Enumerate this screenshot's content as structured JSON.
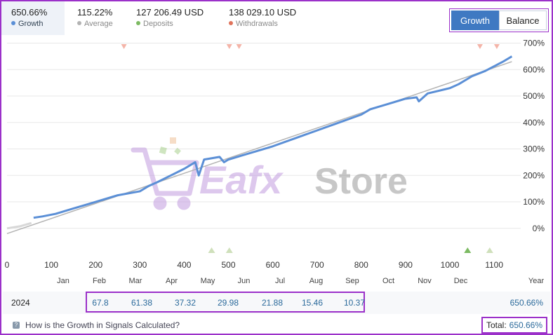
{
  "header": {
    "stats": [
      {
        "value": "650.66%",
        "label": "Growth",
        "dot_color": "#5b8fd6"
      },
      {
        "value": "115.22%",
        "label": "Average",
        "dot_color": "#b3b3b3"
      },
      {
        "value": "127 206.49 USD",
        "label": "Deposits",
        "dot_color": "#7cba62"
      },
      {
        "value": "138 029.10 USD",
        "label": "Withdrawals",
        "dot_color": "#e0735b"
      }
    ],
    "toggle": {
      "growth": "Growth",
      "balance": "Balance"
    }
  },
  "watermark": {
    "text_1": "Eafx",
    "text_2": "Store"
  },
  "chart_data": {
    "type": "line",
    "x_ticks": [
      "0",
      "100",
      "200",
      "300",
      "400",
      "500",
      "600",
      "700",
      "800",
      "900",
      "1000",
      "1100"
    ],
    "y_ticks": [
      "700%",
      "600%",
      "500%",
      "400%",
      "300%",
      "200%",
      "100%",
      "0%"
    ],
    "month_labels": [
      "Jan",
      "Feb",
      "Mar",
      "Apr",
      "May",
      "Jun",
      "Jul",
      "Aug",
      "Sep",
      "Oct",
      "Nov",
      "Dec",
      "Year"
    ],
    "xlim": [
      0,
      1160
    ],
    "ylim": [
      -80,
      720
    ],
    "grid": true,
    "series": [
      {
        "name": "Growth",
        "color": "#5b8fd6",
        "x": [
          60,
          80,
          110,
          150,
          200,
          250,
          300,
          320,
          340,
          370,
          400,
          425,
          433,
          445,
          480,
          490,
          500,
          530,
          560,
          600,
          650,
          700,
          750,
          800,
          820,
          850,
          900,
          925,
          930,
          950,
          1000,
          1020,
          1050,
          1080,
          1120,
          1140
        ],
        "y": [
          40,
          45,
          55,
          75,
          100,
          125,
          140,
          160,
          175,
          200,
          225,
          250,
          200,
          260,
          270,
          250,
          260,
          275,
          290,
          310,
          340,
          370,
          400,
          430,
          450,
          465,
          490,
          495,
          480,
          510,
          530,
          545,
          575,
          595,
          630,
          650
        ]
      },
      {
        "name": "Average",
        "color": "#b3b3b3",
        "x": [
          0,
          1140
        ],
        "y": [
          -20,
          630
        ]
      }
    ],
    "deposit_markers_x": [
      462,
      502,
      1040,
      1090
    ],
    "withdrawal_markers_x": [
      264,
      502,
      524,
      1068,
      1106
    ]
  },
  "year_row": {
    "year": "2024",
    "months": [
      "67.8",
      "61.38",
      "37.32",
      "29.98",
      "21.88",
      "15.46",
      "10.37"
    ],
    "year_total": "650.66%"
  },
  "footer": {
    "help_text": "How is the Growth in Signals Calculated?",
    "total_label": "Total:",
    "total_value": "650.66%"
  }
}
